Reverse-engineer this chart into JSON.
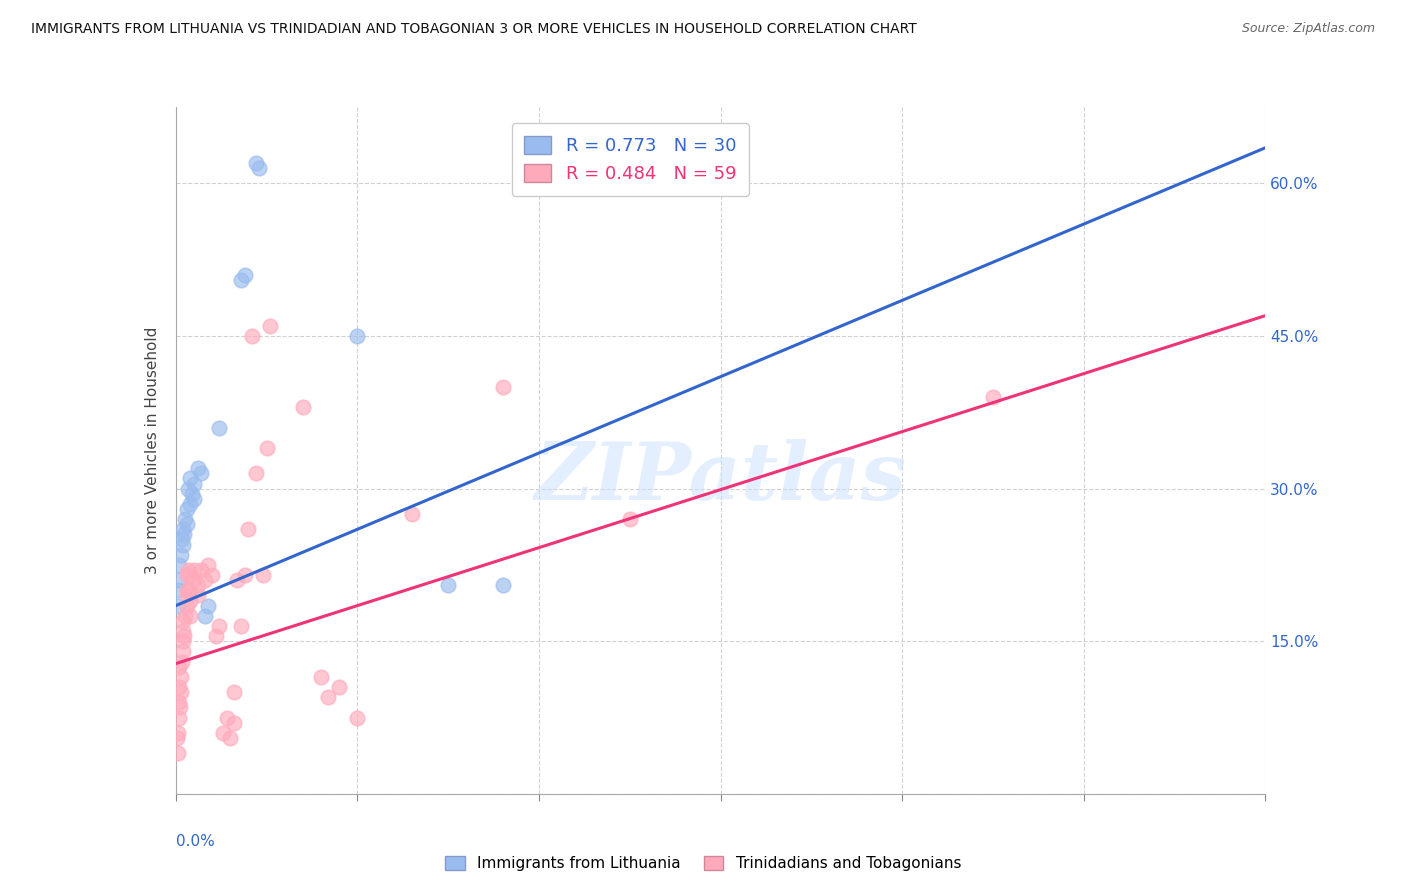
{
  "title": "IMMIGRANTS FROM LITHUANIA VS TRINIDADIAN AND TOBAGONIAN 3 OR MORE VEHICLES IN HOUSEHOLD CORRELATION CHART",
  "source": "Source: ZipAtlas.com",
  "ylabel": "3 or more Vehicles in Household",
  "right_yticks": [
    0.0,
    0.15,
    0.3,
    0.45,
    0.6
  ],
  "right_yticklabels": [
    "",
    "15.0%",
    "30.0%",
    "45.0%",
    "60.0%"
  ],
  "legend1_label": "R = 0.773   N = 30",
  "legend2_label": "R = 0.484   N = 59",
  "legend_label1": "Immigrants from Lithuania",
  "legend_label2": "Trinidadians and Tobagonians",
  "blue_color": "#99BBEE",
  "pink_color": "#FFAABB",
  "blue_line_color": "#3366CC",
  "pink_line_color": "#EE3377",
  "watermark": "ZIPatlas",
  "blue_points": [
    [
      0.0005,
      0.185
    ],
    [
      0.0008,
      0.2
    ],
    [
      0.001,
      0.21
    ],
    [
      0.001,
      0.225
    ],
    [
      0.0015,
      0.235
    ],
    [
      0.0018,
      0.25
    ],
    [
      0.002,
      0.245
    ],
    [
      0.002,
      0.26
    ],
    [
      0.0022,
      0.255
    ],
    [
      0.0025,
      0.27
    ],
    [
      0.003,
      0.28
    ],
    [
      0.003,
      0.265
    ],
    [
      0.0035,
      0.3
    ],
    [
      0.004,
      0.285
    ],
    [
      0.004,
      0.31
    ],
    [
      0.0045,
      0.295
    ],
    [
      0.005,
      0.305
    ],
    [
      0.005,
      0.29
    ],
    [
      0.006,
      0.32
    ],
    [
      0.007,
      0.315
    ],
    [
      0.008,
      0.175
    ],
    [
      0.009,
      0.185
    ],
    [
      0.012,
      0.36
    ],
    [
      0.018,
      0.505
    ],
    [
      0.019,
      0.51
    ],
    [
      0.022,
      0.62
    ],
    [
      0.023,
      0.615
    ],
    [
      0.05,
      0.45
    ],
    [
      0.075,
      0.205
    ],
    [
      0.09,
      0.205
    ]
  ],
  "pink_points": [
    [
      0.0003,
      0.055
    ],
    [
      0.0005,
      0.04
    ],
    [
      0.0007,
      0.06
    ],
    [
      0.0008,
      0.075
    ],
    [
      0.001,
      0.09
    ],
    [
      0.001,
      0.105
    ],
    [
      0.001,
      0.125
    ],
    [
      0.0012,
      0.085
    ],
    [
      0.0015,
      0.1
    ],
    [
      0.0015,
      0.115
    ],
    [
      0.0018,
      0.13
    ],
    [
      0.002,
      0.14
    ],
    [
      0.002,
      0.15
    ],
    [
      0.002,
      0.16
    ],
    [
      0.002,
      0.17
    ],
    [
      0.0022,
      0.155
    ],
    [
      0.0025,
      0.175
    ],
    [
      0.003,
      0.185
    ],
    [
      0.003,
      0.195
    ],
    [
      0.003,
      0.2
    ],
    [
      0.003,
      0.215
    ],
    [
      0.0035,
      0.22
    ],
    [
      0.004,
      0.215
    ],
    [
      0.004,
      0.2
    ],
    [
      0.004,
      0.175
    ],
    [
      0.004,
      0.19
    ],
    [
      0.005,
      0.21
    ],
    [
      0.005,
      0.22
    ],
    [
      0.006,
      0.195
    ],
    [
      0.006,
      0.205
    ],
    [
      0.007,
      0.22
    ],
    [
      0.008,
      0.21
    ],
    [
      0.009,
      0.225
    ],
    [
      0.01,
      0.215
    ],
    [
      0.011,
      0.155
    ],
    [
      0.012,
      0.165
    ],
    [
      0.013,
      0.06
    ],
    [
      0.014,
      0.075
    ],
    [
      0.015,
      0.055
    ],
    [
      0.016,
      0.07
    ],
    [
      0.016,
      0.1
    ],
    [
      0.017,
      0.21
    ],
    [
      0.018,
      0.165
    ],
    [
      0.019,
      0.215
    ],
    [
      0.02,
      0.26
    ],
    [
      0.021,
      0.45
    ],
    [
      0.022,
      0.315
    ],
    [
      0.024,
      0.215
    ],
    [
      0.025,
      0.34
    ],
    [
      0.026,
      0.46
    ],
    [
      0.035,
      0.38
    ],
    [
      0.04,
      0.115
    ],
    [
      0.042,
      0.095
    ],
    [
      0.045,
      0.105
    ],
    [
      0.05,
      0.075
    ],
    [
      0.065,
      0.275
    ],
    [
      0.09,
      0.4
    ],
    [
      0.125,
      0.27
    ],
    [
      0.225,
      0.39
    ]
  ],
  "blue_line_x": [
    0.0,
    0.3
  ],
  "blue_line_y": [
    0.185,
    0.635
  ],
  "pink_line_x": [
    0.0,
    0.3
  ],
  "pink_line_y": [
    0.128,
    0.47
  ],
  "xmin": 0.0,
  "xmax": 0.3,
  "ymin": 0.0,
  "ymax": 0.675
}
